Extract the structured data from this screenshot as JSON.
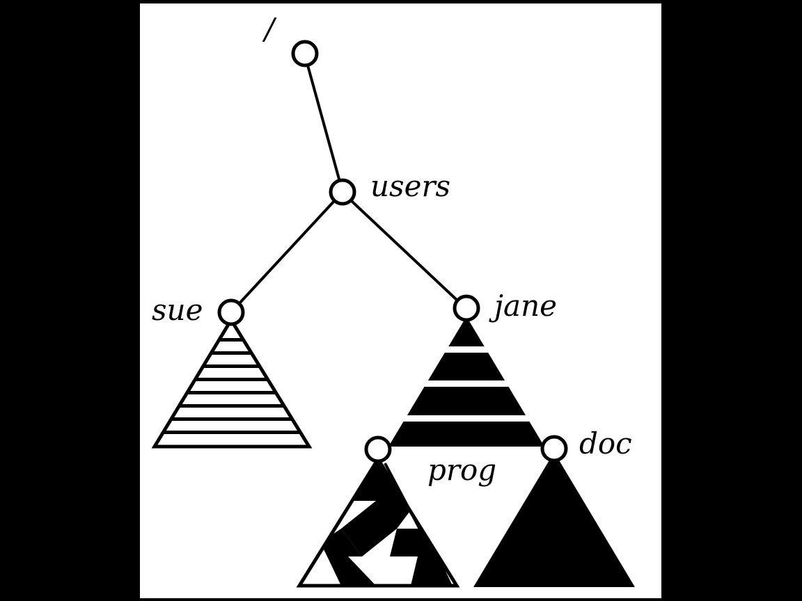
{
  "colors": {
    "background": "#000000",
    "panel": "#ffffff",
    "ink": "#000000"
  },
  "labels": {
    "root": "/",
    "users": "users",
    "sue": "sue",
    "jane": "jane",
    "prog": "prog",
    "doc": "doc"
  }
}
